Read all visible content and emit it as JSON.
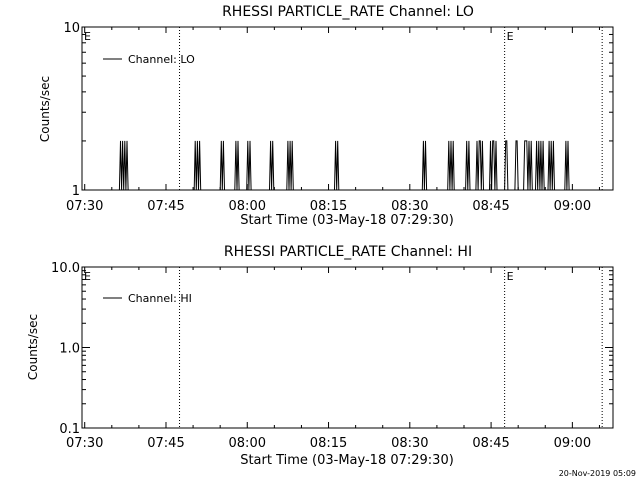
{
  "footer": {
    "timestamp": "20-Nov-2019 05:09"
  },
  "chart_data": [
    {
      "type": "line",
      "title": "RHESSI PARTICLE_RATE Channel: LO",
      "xlabel": "Start Time (03-May-18 07:29:30)",
      "ylabel": "Counts/sec",
      "yscale": "log",
      "ylim": [
        1,
        10
      ],
      "y_ticks": [
        "1",
        "10"
      ],
      "x_ticks": [
        "07:30",
        "07:45",
        "08:00",
        "08:15",
        "08:30",
        "08:45",
        "09:00"
      ],
      "x_tick_minutes": [
        0,
        15,
        30,
        45,
        60,
        75,
        90
      ],
      "xlim_minutes": [
        -0.5,
        97.5
      ],
      "event_markers_minutes": [
        17.5,
        77.5,
        95.5
      ],
      "event_labels": [
        {
          "label": "E",
          "minute": -0.5
        },
        {
          "label": "E",
          "minute": 77.5
        }
      ],
      "legend": {
        "label": "Channel: LO",
        "position": "top-left"
      },
      "series": [
        {
          "name": "Channel: LO",
          "x_minutes": [
            6.4,
            6.6,
            6.8,
            7.0,
            7.2,
            7.4,
            7.6,
            7.8,
            8.0,
            20.2,
            20.4,
            20.6,
            20.8,
            21.0,
            21.2,
            21.4,
            25.0,
            25.2,
            25.4,
            25.6,
            25.8,
            27.7,
            27.9,
            28.1,
            28.3,
            28.5,
            29.9,
            30.1,
            30.3,
            30.5,
            30.7,
            34.1,
            34.3,
            34.5,
            34.7,
            34.9,
            37.3,
            37.5,
            37.7,
            37.9,
            38.1,
            38.3,
            38.5,
            46.1,
            46.3,
            46.5,
            46.7,
            46.9,
            62.3,
            62.5,
            62.7,
            62.9,
            63.1,
            67.0,
            67.2,
            67.4,
            67.6,
            67.8,
            68.0,
            68.2,
            70.3,
            70.5,
            70.7,
            70.9,
            71.1,
            72.2,
            72.4,
            72.6,
            72.8,
            73.0,
            73.2,
            73.4,
            73.6,
            73.8,
            74.7,
            74.9,
            75.1,
            75.3,
            75.5,
            75.7,
            75.9,
            76.1,
            76.3,
            77.5,
            77.7,
            77.9,
            78.1,
            78.3,
            79.4,
            79.6,
            79.8,
            80.0,
            80.2,
            81.0,
            81.2,
            81.4,
            81.6,
            81.8,
            82.0,
            82.2,
            82.4,
            82.6,
            83.2,
            83.4,
            83.6,
            83.8,
            84.0,
            84.2,
            84.4,
            84.6,
            84.8,
            85.5,
            85.7,
            85.9,
            86.1,
            86.3,
            86.5,
            86.7,
            88.6,
            88.8,
            89.0,
            89.2,
            89.4
          ],
          "values": [
            1,
            2,
            1,
            2,
            1,
            2,
            1,
            2,
            1,
            1,
            2,
            1,
            2,
            1,
            2,
            1,
            1,
            2,
            1,
            2,
            1,
            1,
            2,
            1,
            2,
            1,
            1,
            2,
            1,
            2,
            1,
            1,
            2,
            1,
            2,
            1,
            1,
            2,
            1,
            2,
            1,
            2,
            1,
            1,
            2,
            1,
            2,
            1,
            1,
            2,
            1,
            2,
            1,
            1,
            2,
            1,
            2,
            1,
            2,
            1,
            1,
            2,
            1,
            2,
            1,
            1,
            2,
            1,
            2,
            2,
            1,
            2,
            1,
            1,
            1,
            2,
            1,
            2,
            2,
            1,
            2,
            1,
            1,
            1,
            2,
            2,
            1,
            1,
            1,
            2,
            2,
            1,
            1,
            1,
            2,
            2,
            2,
            1,
            2,
            1,
            2,
            1,
            1,
            2,
            1,
            2,
            1,
            2,
            1,
            2,
            1,
            1,
            2,
            1,
            2,
            1,
            2,
            1,
            1,
            2,
            1,
            2,
            1
          ]
        }
      ]
    },
    {
      "type": "line",
      "title": "RHESSI PARTICLE_RATE Channel: HI",
      "xlabel": "Start Time (03-May-18 07:29:30)",
      "ylabel": "Counts/sec",
      "yscale": "log",
      "ylim": [
        0.1,
        10
      ],
      "y_ticks": [
        "0.1",
        "1.0",
        "10.0"
      ],
      "x_ticks": [
        "07:30",
        "07:45",
        "08:00",
        "08:15",
        "08:30",
        "08:45",
        "09:00"
      ],
      "x_tick_minutes": [
        0,
        15,
        30,
        45,
        60,
        75,
        90
      ],
      "xlim_minutes": [
        -0.5,
        97.5
      ],
      "event_markers_minutes": [
        17.5,
        77.5,
        95.5
      ],
      "event_labels": [
        {
          "label": "E",
          "minute": -0.5
        },
        {
          "label": "E",
          "minute": 77.5
        }
      ],
      "legend": {
        "label": "Channel: HI",
        "position": "top-left"
      },
      "series": [
        {
          "name": "Channel: HI",
          "x_minutes": [],
          "values": []
        }
      ]
    }
  ]
}
